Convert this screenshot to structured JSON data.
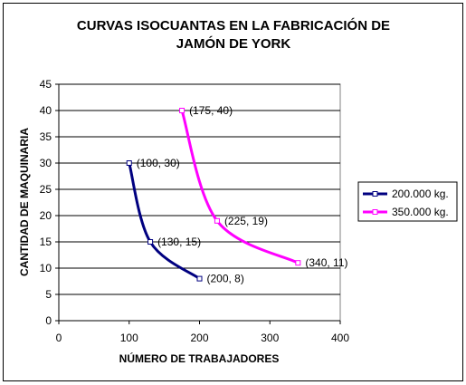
{
  "chart_data": {
    "type": "line",
    "title_line1": "CURVAS ISOCUANTAS EN LA FABRICACIÓN DE",
    "title_line2": "JAMÓN DE YORK",
    "xlabel": "NÚMERO DE TRABAJADORES",
    "ylabel": "CANTIDAD DE MAQUINARIA",
    "xlim": [
      0,
      400
    ],
    "ylim": [
      0,
      45
    ],
    "xticks": [
      0,
      100,
      200,
      300,
      400
    ],
    "yticks": [
      0,
      5,
      10,
      15,
      20,
      25,
      30,
      35,
      40,
      45
    ],
    "grid": "horizontal",
    "legend_position": "right",
    "series": [
      {
        "name": "200.000 kg.",
        "color": "#000080",
        "points": [
          {
            "x": 100,
            "y": 30,
            "label": "(100, 30)"
          },
          {
            "x": 130,
            "y": 15,
            "label": "(130, 15)"
          },
          {
            "x": 200,
            "y": 8,
            "label": "(200, 8)"
          }
        ]
      },
      {
        "name": "350.000 kg.",
        "color": "#FF00FF",
        "points": [
          {
            "x": 175,
            "y": 40,
            "label": "(175, 40)"
          },
          {
            "x": 225,
            "y": 19,
            "label": "(225, 19)"
          },
          {
            "x": 340,
            "y": 11,
            "label": "(340, 11)"
          }
        ]
      }
    ]
  }
}
